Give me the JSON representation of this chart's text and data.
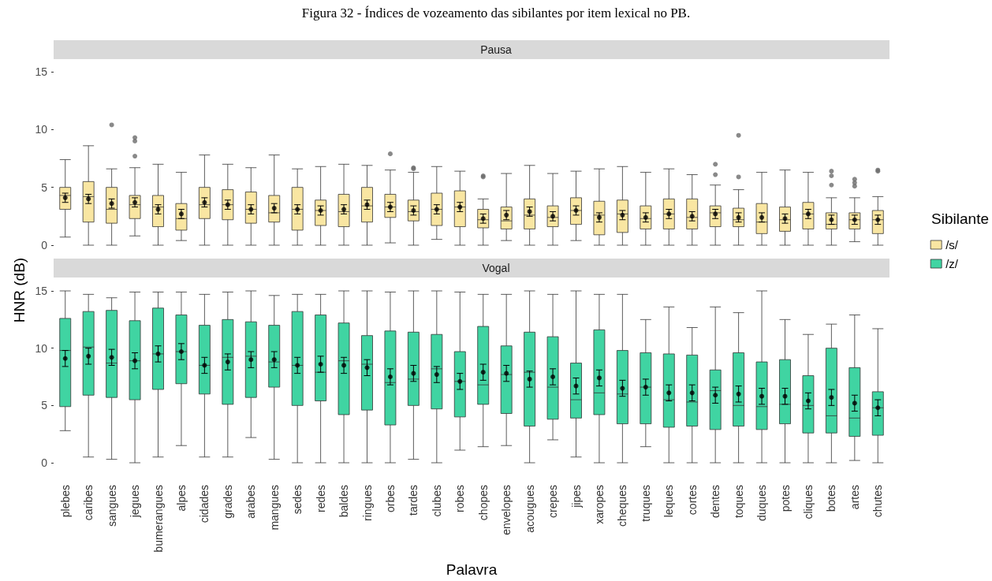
{
  "chart_data": [
    {
      "type": "box",
      "title": "Figura 32 - Índices de vozeamento das sibilantes por item lexical no PB.",
      "subtitle": "Pausa",
      "legend_title": "Sibilante",
      "legend": "right",
      "grid": false,
      "tick_labels": "y",
      "categories": [
        "plebes",
        "caribes",
        "sangues",
        "jegues",
        "bumerangues",
        "alpes",
        "cidades",
        "grades",
        "arabes",
        "mangues",
        "sedes",
        "redes",
        "baldes",
        "ringues",
        "orbes",
        "tardes",
        "clubes",
        "robes",
        "chopes",
        "envelopes",
        "acougues",
        "crepes",
        "jipes",
        "xaropes",
        "cheques",
        "truques",
        "leques",
        "cortes",
        "dentes",
        "toques",
        "duques",
        "potes",
        "cliques",
        "botes",
        "artes",
        "chutes"
      ],
      "ylim": [
        0,
        15
      ],
      "yticks": [
        0,
        5,
        10,
        15
      ],
      "series": [
        {
          "type": "box",
          "name": "/s/",
          "color": "#f9e6a2",
          "boxes": [
            {
              "low": 0.7,
              "q1": 3.1,
              "median": 4.3,
              "q3": 5.0,
              "high": 7.4
            },
            {
              "low": 0,
              "q1": 2.0,
              "median": 4.2,
              "q3": 5.5,
              "high": 8.6
            },
            {
              "low": 0,
              "q1": 1.9,
              "median": 3.1,
              "q3": 5.0,
              "high": 6.6,
              "outliers": [
                10.4
              ]
            },
            {
              "low": 0.8,
              "q1": 2.3,
              "median": 3.5,
              "q3": 4.3,
              "high": 6.7,
              "outliers": [
                9.3,
                9.0,
                7.7
              ]
            },
            {
              "low": 0,
              "q1": 1.6,
              "median": 3.3,
              "q3": 4.3,
              "high": 7.0
            },
            {
              "low": 0.4,
              "q1": 1.3,
              "median": 2.3,
              "q3": 3.6,
              "high": 6.3
            },
            {
              "low": 0,
              "q1": 2.3,
              "median": 3.5,
              "q3": 5.0,
              "high": 7.8
            },
            {
              "low": 0,
              "q1": 2.2,
              "median": 3.5,
              "q3": 4.8,
              "high": 7.0
            },
            {
              "low": 0,
              "q1": 1.9,
              "median": 3.1,
              "q3": 4.6,
              "high": 6.7
            },
            {
              "low": 0,
              "q1": 2.0,
              "median": 2.8,
              "q3": 4.3,
              "high": 7.8
            },
            {
              "low": 0,
              "q1": 1.3,
              "median": 3.1,
              "q3": 5.0,
              "high": 6.6
            },
            {
              "low": 0,
              "q1": 1.7,
              "median": 3.0,
              "q3": 3.9,
              "high": 6.8
            },
            {
              "low": 0,
              "q1": 1.6,
              "median": 2.9,
              "q3": 4.4,
              "high": 7.0
            },
            {
              "low": 0,
              "q1": 2.0,
              "median": 3.4,
              "q3": 5.0,
              "high": 6.9
            },
            {
              "low": 0.2,
              "q1": 2.4,
              "median": 3.3,
              "q3": 4.4,
              "high": 6.5,
              "outliers": [
                7.9
              ]
            },
            {
              "low": 0,
              "q1": 2.1,
              "median": 2.9,
              "q3": 3.9,
              "high": 6.3,
              "outliers": [
                6.7,
                6.6
              ]
            },
            {
              "low": 0.5,
              "q1": 1.7,
              "median": 3.1,
              "q3": 4.5,
              "high": 6.8
            },
            {
              "low": 0,
              "q1": 1.6,
              "median": 3.3,
              "q3": 4.7,
              "high": 6.4
            },
            {
              "low": 0,
              "q1": 1.5,
              "median": 2.2,
              "q3": 3.1,
              "high": 4.0,
              "outliers": [
                6.0,
                5.9
              ]
            },
            {
              "low": 0.4,
              "q1": 1.4,
              "median": 2.1,
              "q3": 3.3,
              "high": 6.2
            },
            {
              "low": 0,
              "q1": 1.4,
              "median": 2.6,
              "q3": 4.0,
              "high": 6.9
            },
            {
              "low": 0,
              "q1": 1.6,
              "median": 2.4,
              "q3": 3.4,
              "high": 6.2
            },
            {
              "low": 0.4,
              "q1": 1.8,
              "median": 3.0,
              "q3": 4.1,
              "high": 6.4
            },
            {
              "low": 0,
              "q1": 0.9,
              "median": 2.6,
              "q3": 3.8,
              "high": 6.6
            },
            {
              "low": 0,
              "q1": 1.1,
              "median": 2.7,
              "q3": 3.9,
              "high": 6.8
            },
            {
              "low": 0,
              "q1": 1.4,
              "median": 2.3,
              "q3": 3.4,
              "high": 6.3
            },
            {
              "low": 0,
              "q1": 1.4,
              "median": 2.7,
              "q3": 4.0,
              "high": 6.6
            },
            {
              "low": 0,
              "q1": 1.4,
              "median": 2.4,
              "q3": 4.0,
              "high": 6.1
            },
            {
              "low": 0,
              "q1": 1.6,
              "median": 2.8,
              "q3": 3.4,
              "high": 5.2,
              "outliers": [
                7.0,
                6.1
              ]
            },
            {
              "low": 0,
              "q1": 1.6,
              "median": 2.2,
              "q3": 3.2,
              "high": 4.8,
              "outliers": [
                9.5,
                5.9
              ]
            },
            {
              "low": 0,
              "q1": 1.0,
              "median": 2.0,
              "q3": 3.6,
              "high": 6.3
            },
            {
              "low": 0,
              "q1": 1.2,
              "median": 2.2,
              "q3": 3.3,
              "high": 6.5
            },
            {
              "low": 0,
              "q1": 1.4,
              "median": 2.7,
              "q3": 3.7,
              "high": 6.3
            },
            {
              "low": 0,
              "q1": 1.4,
              "median": 1.8,
              "q3": 2.8,
              "high": 4.1,
              "outliers": [
                6.4,
                6.0,
                5.2
              ]
            },
            {
              "low": 0.3,
              "q1": 1.4,
              "median": 2.2,
              "q3": 2.8,
              "high": 4.1,
              "outliers": [
                5.7,
                5.4,
                5.1
              ]
            },
            {
              "low": 0,
              "q1": 1.0,
              "median": 2.2,
              "q3": 3.0,
              "high": 4.2,
              "outliers": [
                6.5,
                6.4
              ]
            }
          ]
        },
        {
          "type": "scatter",
          "color": "#000000",
          "x": [
            "plebes",
            "caribes",
            "sangues",
            "jegues",
            "bumerangues",
            "alpes",
            "cidades",
            "grades",
            "arabes",
            "mangues",
            "sedes",
            "redes",
            "baldes",
            "ringues",
            "orbes",
            "tardes",
            "clubes",
            "robes",
            "chopes",
            "envelopes",
            "acougues",
            "crepes",
            "jipes",
            "xaropes",
            "cheques",
            "truques",
            "leques",
            "cortes",
            "dentes",
            "toques",
            "duques",
            "potes",
            "cliques",
            "botes",
            "artes",
            "chutes"
          ],
          "values": [
            4.1,
            4.0,
            3.6,
            3.7,
            3.1,
            2.7,
            3.7,
            3.5,
            3.1,
            3.2,
            3.1,
            3.0,
            3.1,
            3.5,
            3.3,
            3.0,
            3.1,
            3.3,
            2.3,
            2.6,
            2.9,
            2.5,
            3.0,
            2.4,
            2.6,
            2.4,
            2.7,
            2.5,
            2.7,
            2.4,
            2.4,
            2.3,
            2.7,
            2.2,
            2.2,
            2.2
          ],
          "errors": [
            0.4,
            0.4,
            0.4,
            0.4,
            0.4,
            0.4,
            0.4,
            0.4,
            0.4,
            0.4,
            0.4,
            0.4,
            0.4,
            0.4,
            0.4,
            0.4,
            0.4,
            0.4,
            0.4,
            0.4,
            0.4,
            0.4,
            0.4,
            0.4,
            0.4,
            0.4,
            0.4,
            0.4,
            0.4,
            0.4,
            0.4,
            0.4,
            0.4,
            0.4,
            0.4,
            0.4
          ]
        }
      ]
    },
    {
      "type": "box",
      "subtitle": "Vogal",
      "xlabel": "Palavra",
      "ylabel": "HNR (dB)",
      "legend": "right",
      "grid": false,
      "categories": [
        "plebes",
        "caribes",
        "sangues",
        "jegues",
        "bumerangues",
        "alpes",
        "cidades",
        "grades",
        "arabes",
        "mangues",
        "sedes",
        "redes",
        "baldes",
        "ringues",
        "orbes",
        "tardes",
        "clubes",
        "robes",
        "chopes",
        "envelopes",
        "acougues",
        "crepes",
        "jipes",
        "xaropes",
        "cheques",
        "truques",
        "leques",
        "cortes",
        "dentes",
        "toques",
        "duques",
        "potes",
        "cliques",
        "botes",
        "artes",
        "chutes"
      ],
      "ylim": [
        0,
        15
      ],
      "yticks": [
        0,
        5,
        10,
        15
      ],
      "series": [
        {
          "type": "box",
          "name": "/z/",
          "color": "#40d4a2",
          "boxes": [
            {
              "low": 2.8,
              "q1": 4.9,
              "median": 9.8,
              "q3": 12.6,
              "high": 15.0
            },
            {
              "low": 0.5,
              "q1": 5.9,
              "median": 10.1,
              "q3": 13.2,
              "high": 14.7
            },
            {
              "low": 0.3,
              "q1": 5.7,
              "median": 8.7,
              "q3": 13.3,
              "high": 14.4
            },
            {
              "low": 0,
              "q1": 5.5,
              "median": 8.9,
              "q3": 12.4,
              "high": 14.9
            },
            {
              "low": 0.5,
              "q1": 6.4,
              "median": 9.5,
              "q3": 13.5,
              "high": 14.9
            },
            {
              "low": 1.5,
              "q1": 6.9,
              "median": 9.7,
              "q3": 12.9,
              "high": 14.9
            },
            {
              "low": 0.5,
              "q1": 6.0,
              "median": 8.5,
              "q3": 12.0,
              "high": 14.7
            },
            {
              "low": 0.5,
              "q1": 5.1,
              "median": 9.2,
              "q3": 12.5,
              "high": 14.9
            },
            {
              "low": 2.2,
              "q1": 5.7,
              "median": 9.3,
              "q3": 12.3,
              "high": 15.0
            },
            {
              "low": 0.3,
              "q1": 6.6,
              "median": 8.8,
              "q3": 12.0,
              "high": 14.6
            },
            {
              "low": 0,
              "q1": 5.0,
              "median": 8.5,
              "q3": 13.2,
              "high": 14.7
            },
            {
              "low": 0,
              "q1": 5.4,
              "median": 7.9,
              "q3": 12.9,
              "high": 14.7
            },
            {
              "low": 0,
              "q1": 4.2,
              "median": 8.9,
              "q3": 12.2,
              "high": 15.0
            },
            {
              "low": 0,
              "q1": 4.6,
              "median": 8.6,
              "q3": 11.1,
              "high": 15.0
            },
            {
              "low": 0,
              "q1": 3.3,
              "median": 7.0,
              "q3": 11.5,
              "high": 14.9
            },
            {
              "low": 0.3,
              "q1": 5.0,
              "median": 7.3,
              "q3": 11.4,
              "high": 15.0
            },
            {
              "low": 0,
              "q1": 4.7,
              "median": 8.2,
              "q3": 11.2,
              "high": 15.0
            },
            {
              "low": 1.1,
              "q1": 4.0,
              "median": 7.1,
              "q3": 9.7,
              "high": 14.9
            },
            {
              "low": 1.4,
              "q1": 5.1,
              "median": 6.8,
              "q3": 11.9,
              "high": 14.7
            },
            {
              "low": 1.5,
              "q1": 4.3,
              "median": 7.7,
              "q3": 10.2,
              "high": 14.7
            },
            {
              "low": 0,
              "q1": 3.2,
              "median": 7.9,
              "q3": 11.4,
              "high": 15.0
            },
            {
              "low": 2.0,
              "q1": 3.8,
              "median": 6.6,
              "q3": 11.0,
              "high": 14.7
            },
            {
              "low": 0.5,
              "q1": 3.9,
              "median": 5.5,
              "q3": 8.7,
              "high": 15.0
            },
            {
              "low": 0,
              "q1": 4.2,
              "median": 6.1,
              "q3": 11.6,
              "high": 14.7
            },
            {
              "low": 0,
              "q1": 3.4,
              "median": 6.0,
              "q3": 9.8,
              "high": 14.7
            },
            {
              "low": 1.4,
              "q1": 3.4,
              "median": 6.6,
              "q3": 9.6,
              "high": 12.5
            },
            {
              "low": 0,
              "q1": 3.1,
              "median": 5.5,
              "q3": 9.5,
              "high": 13.6
            },
            {
              "low": 0,
              "q1": 3.2,
              "median": 5.3,
              "q3": 9.4,
              "high": 11.8
            },
            {
              "low": 0,
              "q1": 2.9,
              "median": 6.3,
              "q3": 8.1,
              "high": 13.6
            },
            {
              "low": 0,
              "q1": 3.2,
              "median": 5.0,
              "q3": 9.6,
              "high": 13.1
            },
            {
              "low": 0,
              "q1": 2.9,
              "median": 4.9,
              "q3": 8.8,
              "high": 15.0
            },
            {
              "low": 0,
              "q1": 3.4,
              "median": 5.1,
              "q3": 9.0,
              "high": 12.5
            },
            {
              "low": 0,
              "q1": 2.6,
              "median": 5.0,
              "q3": 7.6,
              "high": 11.2
            },
            {
              "low": 0,
              "q1": 2.6,
              "median": 4.1,
              "q3": 10.0,
              "high": 12.1
            },
            {
              "low": 0.2,
              "q1": 2.3,
              "median": 3.9,
              "q3": 8.3,
              "high": 12.9
            },
            {
              "low": 0,
              "q1": 2.4,
              "median": 4.8,
              "q3": 6.2,
              "high": 11.7
            }
          ]
        },
        {
          "type": "scatter",
          "color": "#000000",
          "x": [
            "plebes",
            "caribes",
            "sangues",
            "jegues",
            "bumerangues",
            "alpes",
            "cidades",
            "grades",
            "arabes",
            "mangues",
            "sedes",
            "redes",
            "baldes",
            "ringues",
            "orbes",
            "tardes",
            "clubes",
            "robes",
            "chopes",
            "envelopes",
            "acougues",
            "crepes",
            "jipes",
            "xaropes",
            "cheques",
            "truques",
            "leques",
            "cortes",
            "dentes",
            "toques",
            "duques",
            "potes",
            "cliques",
            "botes",
            "artes",
            "chutes"
          ],
          "values": [
            9.1,
            9.3,
            9.2,
            8.9,
            9.5,
            9.7,
            8.5,
            8.8,
            9.0,
            9.0,
            8.5,
            8.6,
            8.5,
            8.3,
            7.5,
            7.8,
            7.7,
            7.1,
            7.9,
            7.8,
            7.3,
            7.5,
            6.7,
            7.4,
            6.5,
            6.6,
            6.1,
            6.1,
            5.9,
            6.0,
            5.8,
            5.8,
            5.4,
            5.7,
            5.2,
            4.8
          ],
          "errors": [
            0.7,
            0.7,
            0.7,
            0.7,
            0.7,
            0.7,
            0.7,
            0.7,
            0.7,
            0.7,
            0.7,
            0.7,
            0.7,
            0.7,
            0.7,
            0.7,
            0.7,
            0.7,
            0.7,
            0.7,
            0.7,
            0.7,
            0.7,
            0.7,
            0.7,
            0.7,
            0.7,
            0.7,
            0.7,
            0.7,
            0.7,
            0.7,
            0.7,
            0.7,
            0.7,
            0.7
          ]
        }
      ]
    }
  ]
}
